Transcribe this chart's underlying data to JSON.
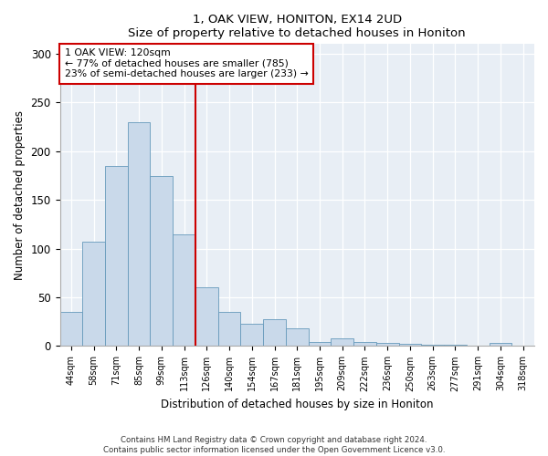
{
  "title": "1, OAK VIEW, HONITON, EX14 2UD",
  "subtitle": "Size of property relative to detached houses in Honiton",
  "xlabel": "Distribution of detached houses by size in Honiton",
  "ylabel": "Number of detached properties",
  "bar_color": "#c9d9ea",
  "bar_edge_color": "#6699bb",
  "background_color": "#e8eef5",
  "annotation_line_color": "#cc0000",
  "annotation_text_line1": "1 OAK VIEW: 120sqm",
  "annotation_text_line2": "← 77% of detached houses are smaller (785)",
  "annotation_text_line3": "23% of semi-detached houses are larger (233) →",
  "footer": "Contains HM Land Registry data © Crown copyright and database right 2024.\nContains public sector information licensed under the Open Government Licence v3.0.",
  "categories": [
    "44sqm",
    "58sqm",
    "71sqm",
    "85sqm",
    "99sqm",
    "113sqm",
    "126sqm",
    "140sqm",
    "154sqm",
    "167sqm",
    "181sqm",
    "195sqm",
    "209sqm",
    "222sqm",
    "236sqm",
    "250sqm",
    "263sqm",
    "277sqm",
    "291sqm",
    "304sqm",
    "318sqm"
  ],
  "values": [
    35,
    107,
    185,
    230,
    175,
    115,
    60,
    35,
    23,
    28,
    18,
    4,
    8,
    4,
    3,
    2,
    1,
    1,
    0,
    3,
    0
  ],
  "ylim": [
    0,
    310
  ],
  "yticks": [
    0,
    50,
    100,
    150,
    200,
    250,
    300
  ],
  "red_line_index": 6
}
